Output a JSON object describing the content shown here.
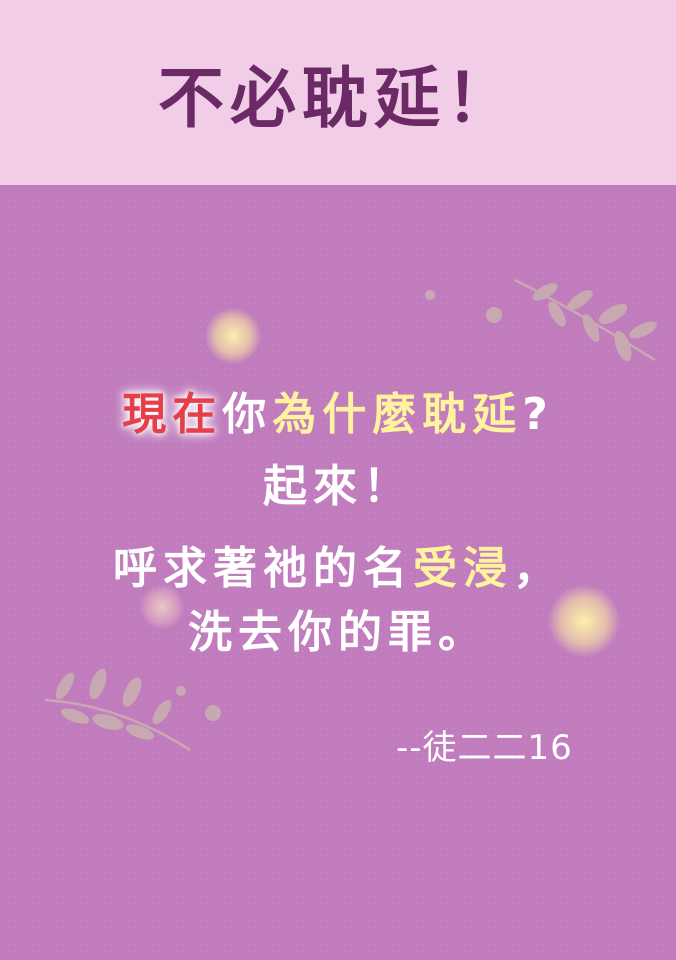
{
  "header": {
    "title": "不必耽延！"
  },
  "verse": {
    "line1": {
      "red": "現在",
      "white": "你",
      "yellow": "為什麼耽延",
      "end": "?"
    },
    "line2": "起來！",
    "line3": {
      "white": "呼求著祂的名",
      "yellow": "受浸",
      "end": "，"
    },
    "line4": "洗去你的罪。"
  },
  "reference": "--徒二二16",
  "colors": {
    "background": "#c07cbd",
    "header_background": "#f1cde8",
    "header_text": "#6b2a66",
    "highlight_red": "#e5404a",
    "highlight_yellow": "#fff3a0"
  },
  "decorations": {
    "branch_top_right": "olive-branch-icon",
    "branch_bottom_left": "olive-branch-icon"
  }
}
